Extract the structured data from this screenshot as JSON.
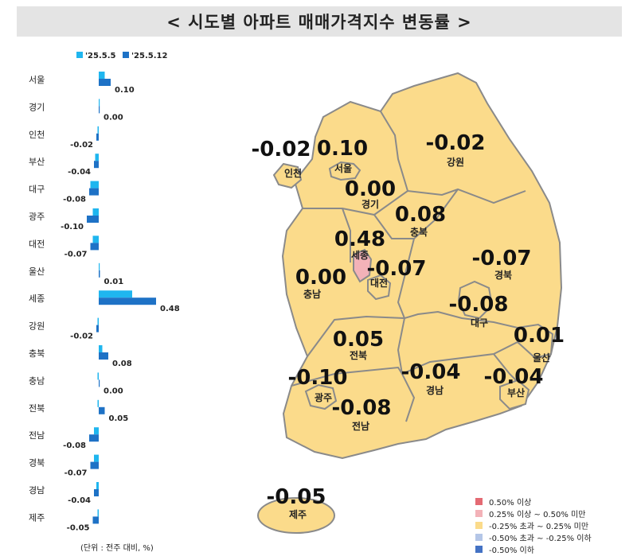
{
  "title": "< 시도별 아파트 매매가격지수 변동률 >",
  "unit_note": "(단위 : 전주 대비, %)",
  "colors": {
    "series_prev": "#1fb6ef",
    "series_curr": "#1e72c6",
    "map_fill_neutral": "#fbdb8b",
    "map_fill_high": "#f3b2b8",
    "map_border": "#8a8a8a"
  },
  "chart_data": [
    {
      "type": "bar",
      "orientation": "horizontal",
      "categories": [
        "서울",
        "경기",
        "인천",
        "부산",
        "대구",
        "광주",
        "대전",
        "울산",
        "세종",
        "강원",
        "충북",
        "충남",
        "전북",
        "전남",
        "경북",
        "경남",
        "제주"
      ],
      "series": [
        {
          "name": "'25.5.5",
          "values": [
            0.05,
            0.0,
            -0.01,
            -0.03,
            -0.07,
            -0.05,
            -0.05,
            0.0,
            0.28,
            -0.01,
            0.03,
            -0.01,
            -0.01,
            -0.04,
            -0.04,
            -0.02,
            -0.01
          ]
        },
        {
          "name": "'25.5.12",
          "values": [
            0.1,
            0.0,
            -0.02,
            -0.04,
            -0.08,
            -0.1,
            -0.07,
            0.01,
            0.48,
            -0.02,
            0.08,
            0.0,
            0.05,
            -0.08,
            -0.07,
            -0.04,
            -0.05
          ]
        }
      ],
      "labels": [
        "0.10",
        "0.00",
        "-0.02",
        "-0.04",
        "-0.08",
        "-0.10",
        "-0.07",
        "0.01",
        "0.48",
        "-0.02",
        "0.08",
        "0.00",
        "0.05",
        "-0.08",
        "-0.07",
        "-0.04",
        "-0.05"
      ],
      "xlim": [
        -0.12,
        0.5
      ],
      "legend_position": "top"
    },
    {
      "type": "choropleth",
      "regions": [
        {
          "name": "인천",
          "value": "-0.02"
        },
        {
          "name": "서울",
          "value": "0.10"
        },
        {
          "name": "강원",
          "value": "-0.02"
        },
        {
          "name": "경기",
          "value": "0.00"
        },
        {
          "name": "충북",
          "value": "0.08"
        },
        {
          "name": "세종",
          "value": "0.48"
        },
        {
          "name": "대전",
          "value": "-0.07"
        },
        {
          "name": "경북",
          "value": "-0.07"
        },
        {
          "name": "충남",
          "value": "0.00"
        },
        {
          "name": "대구",
          "value": "-0.08"
        },
        {
          "name": "전북",
          "value": "0.05"
        },
        {
          "name": "울산",
          "value": "0.01"
        },
        {
          "name": "광주",
          "value": "-0.10"
        },
        {
          "name": "경남",
          "value": "-0.04"
        },
        {
          "name": "부산",
          "value": "-0.04"
        },
        {
          "name": "전남",
          "value": "-0.08"
        },
        {
          "name": "제주",
          "value": "-0.05"
        }
      ],
      "legend": [
        {
          "label": "0.50% 이상",
          "color": "#e46a73"
        },
        {
          "label": "0.25% 이상 ~ 0.50% 미만",
          "color": "#f3b2b8"
        },
        {
          "label": "-0.25% 초과 ~ 0.25% 미만",
          "color": "#fbdb8b"
        },
        {
          "label": "-0.50% 초과 ~ -0.25% 이하",
          "color": "#b4c6e7"
        },
        {
          "label": "-0.50% 이하",
          "color": "#4472c4"
        }
      ],
      "legend_position": "bottom-right"
    }
  ]
}
